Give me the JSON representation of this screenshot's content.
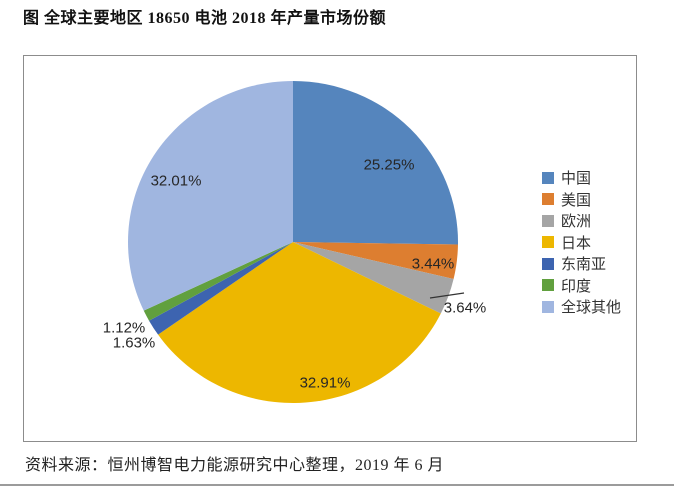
{
  "title": "图 全球主要地区 18650 电池 2018 年产量市场份额",
  "source": "资料来源：恒州博智电力能源研究中心整理，2019 年 6 月",
  "chart_data": {
    "type": "pie",
    "title": "全球主要地区 18650 电池 2018 年产量市场份额",
    "legend_position": "right",
    "direction": "clockwise",
    "start_angle_deg": 0,
    "categories": [
      "中国",
      "美国",
      "欧洲",
      "日本",
      "东南亚",
      "印度",
      "全球其他"
    ],
    "values": [
      25.25,
      3.44,
      3.64,
      32.91,
      1.63,
      1.12,
      32.01
    ],
    "labels": [
      "25.25%",
      "3.44%",
      "3.64%",
      "32.91%",
      "1.63%",
      "1.12%",
      "32.01%"
    ],
    "colors": [
      "#5585BD",
      "#DD7E30",
      "#A5A5A5",
      "#EDB700",
      "#3D64B0",
      "#61A03E",
      "#A0B6E0"
    ]
  }
}
